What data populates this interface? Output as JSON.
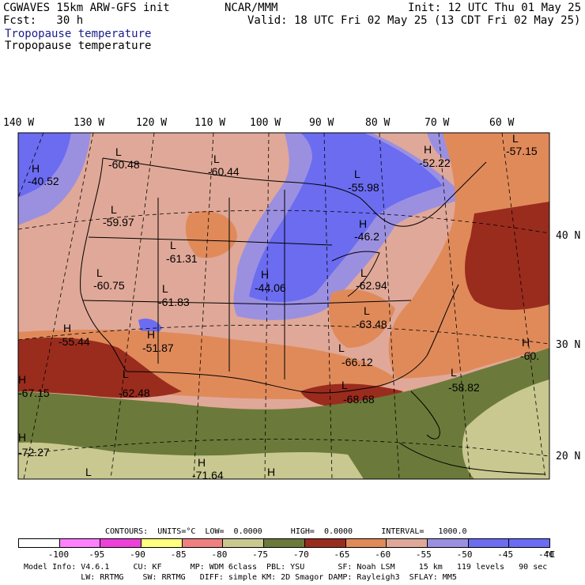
{
  "header": {
    "model": "CGWAVES 15km ARW-GFS init",
    "fcst": "Fcst:   30 h",
    "org": "NCAR/MMM",
    "init": "Init: 12 UTC Thu 01 May 25",
    "valid": "Valid: 18 UTC Fri 02 May 25 (13 CDT Fri 02 May 25)",
    "field1": "Tropopause temperature",
    "field2": "Tropopause temperature"
  },
  "axes": {
    "lon_labels": [
      "140 W",
      "130 W",
      "120 W",
      "110 W",
      "100 W",
      "90 W",
      "80 W",
      "70 W",
      "60 W"
    ],
    "lat_labels": [
      "40 N",
      "30 N",
      "20 N"
    ]
  },
  "map_labels": [
    {
      "type": "H",
      "value": "-40.52"
    },
    {
      "type": "L",
      "value": "-60.48"
    },
    {
      "type": "L",
      "value": "-60.44"
    },
    {
      "type": "L",
      "value": "-55.98"
    },
    {
      "type": "H",
      "value": "-52.22"
    },
    {
      "type": "L",
      "value": "-57.15"
    },
    {
      "type": "L",
      "value": "-59.97"
    },
    {
      "type": "L",
      "value": "-61.31"
    },
    {
      "type": "H",
      "value": "-46.2"
    },
    {
      "type": "L",
      "value": "-60.75"
    },
    {
      "type": "L",
      "value": "-61.83"
    },
    {
      "type": "H",
      "value": "-44.06"
    },
    {
      "type": "L",
      "value": "-62.94"
    },
    {
      "type": "L",
      "value": "-63.48"
    },
    {
      "type": "H",
      "value": "-55.44"
    },
    {
      "type": "H",
      "value": "-51.87"
    },
    {
      "type": "L",
      "value": "-66.12"
    },
    {
      "type": "H",
      "value": "-60."
    },
    {
      "type": "H",
      "value": "-67.15"
    },
    {
      "type": "L",
      "value": "-62.48"
    },
    {
      "type": "L",
      "value": "-58.82"
    },
    {
      "type": "L",
      "value": "-68.68"
    },
    {
      "type": "H",
      "value": "-72.27"
    },
    {
      "type": "H",
      "value": "-71.64"
    },
    {
      "type": "L",
      "value": ""
    },
    {
      "type": "H",
      "value": ""
    }
  ],
  "legend": {
    "contours": "CONTOURS:  UNITS=°C  LOW=  0.0000      HIGH=  0.0000      INTERVAL=   1000.0",
    "ticks": [
      "-100",
      "-95",
      "-90",
      "-85",
      "-80",
      "-75",
      "-70",
      "-65",
      "-60",
      "-55",
      "-50",
      "-45",
      "-40",
      "°C"
    ],
    "colors": [
      "#ffffff",
      "#ff80ff",
      "#ee40d8",
      "#ffff80",
      "#f08080",
      "#c8c890",
      "#6b7a3a",
      "#9a2c1e",
      "#e08a5a",
      "#e0a898",
      "#9b90e0",
      "#6b6cf0",
      "#6a6cf6"
    ]
  },
  "footer": {
    "line1": "Model Info: V4.6.1     CU: KF      MP: WDM 6class  PBL: YSU       SF: Noah LSM     15 km   119 levels   90 sec",
    "line2": "            LW: RRTMG    SW: RRTMG   DIFF: simple KM: 2D Smagor DAMP: Rayleigh3  SFLAY: MM5"
  }
}
